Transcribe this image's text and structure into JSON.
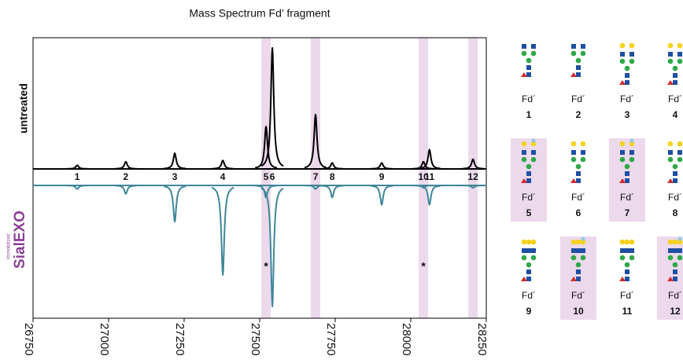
{
  "chart_data": {
    "type": "spectrum",
    "title": "Mass Spectrum Fd’ fragment",
    "categories": [
      "1",
      "2",
      "3",
      "4",
      "5",
      "6",
      "7",
      "8",
      "9",
      "10",
      "11",
      "12"
    ],
    "x": [
      26896,
      27057,
      27219,
      27378,
      27521,
      27542,
      27685,
      27740,
      27904,
      28042,
      28062,
      28206
    ],
    "series": [
      {
        "name": "untreated",
        "color": "#000000",
        "direction": "up",
        "values": [
          3,
          6,
          13,
          7,
          35,
          100,
          45,
          5,
          5,
          6,
          16,
          8
        ]
      },
      {
        "name": "SialEXO",
        "prefix": "Immobilized",
        "color": "#3e8799",
        "direction": "down",
        "values": [
          3,
          7,
          30,
          74,
          10,
          100,
          3,
          10,
          16,
          2,
          16,
          2
        ]
      }
    ],
    "highlight": [
      false,
      false,
      false,
      false,
      true,
      false,
      true,
      false,
      false,
      true,
      false,
      true
    ],
    "highlight_color": "#ecd9ec",
    "annotations": [
      {
        "text": "*",
        "x": 27521
      },
      {
        "text": "*",
        "x": 28042
      }
    ],
    "xlim": [
      26750,
      28250
    ],
    "xticks": [
      26750,
      27000,
      27250,
      27500,
      27750,
      28000,
      28250
    ]
  },
  "glycan_panel": {
    "label": "Fd´"
  }
}
